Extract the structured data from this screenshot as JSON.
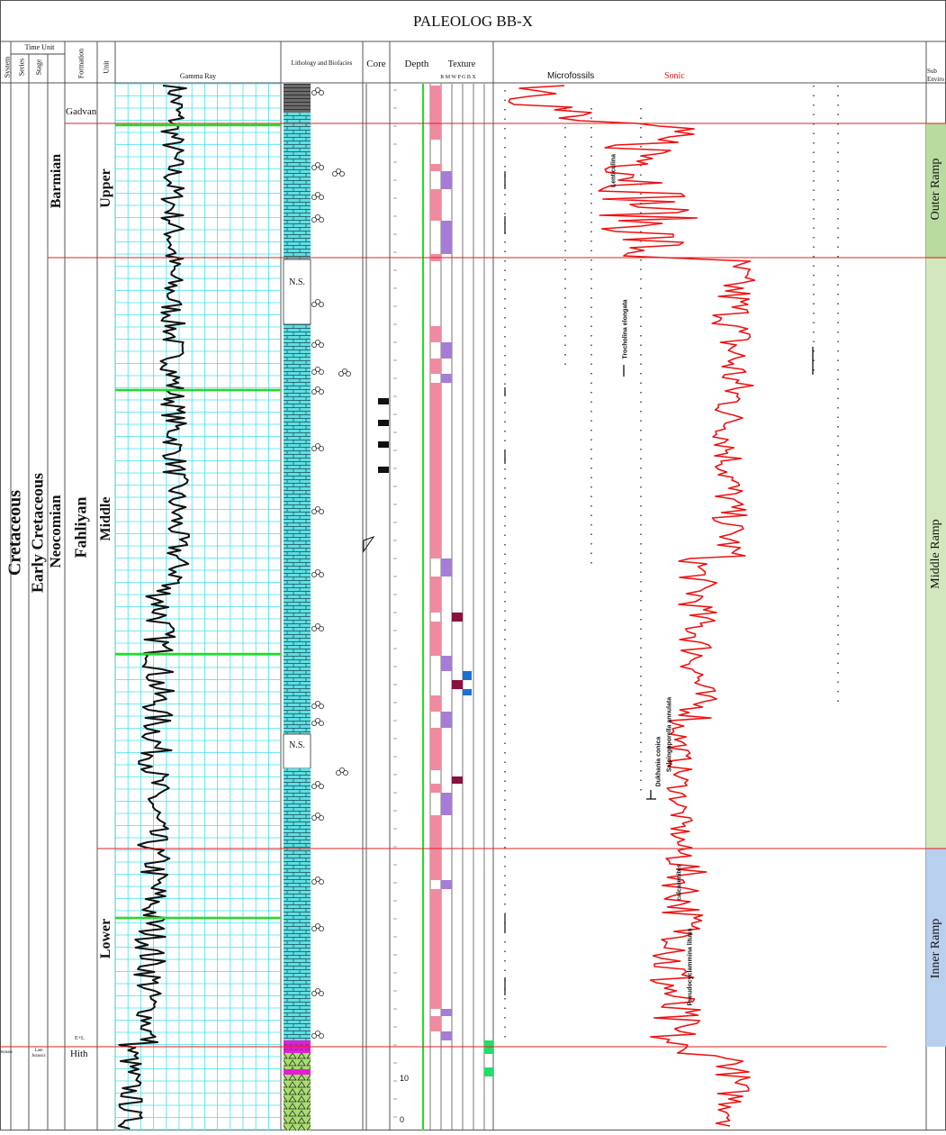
{
  "title": "PALEOLOG BB-X",
  "headers": {
    "system": "System",
    "series": "Series",
    "time_unit": "Time Unit",
    "stage": "Stage",
    "formation": "Formation",
    "unit": "Unit",
    "gamma_ray": "Gamma Ray",
    "lithology": "Lithology and Biofacies",
    "core": "Core",
    "depth": "Depth",
    "texture": "Texture",
    "texture_letters": "R  M  W  P  G  B  X",
    "microfossils": "Microfossils",
    "sonic": "Sonic",
    "sub_env": "Sub Enviro"
  },
  "strat": {
    "system": "Cretaceous",
    "series": "Early Cretaceous",
    "stage": "Neocomian",
    "stage_upper": "Barmian",
    "formation_top": "Gadvan",
    "formation_main": "Fahliyan",
    "unit_upper": "Upper",
    "unit_middle": "Middle",
    "unit_lower": "Lower",
    "unit_el": "E+L",
    "system_base": "Jurassic",
    "series_base": "Late Jurassic",
    "formation_base": "Hith"
  },
  "ns_label": "N.S.",
  "depth_ticks": [
    "10",
    "0"
  ],
  "fossils": [
    "Lenticulina",
    "Trocholina elongata",
    "Dukhania conica",
    "Salpingoporella annulata",
    "calcarenites",
    "Pseudocyclammina lituus"
  ],
  "environments": [
    "Outer Ramp",
    "Middle Ramp",
    "Inner Ramp"
  ],
  "colors": {
    "grid": "#44e0ec",
    "boundary": "#e02020",
    "green_line": "#22dd22",
    "litho": "#5ee0e4",
    "env_outer": "#b9dba0",
    "env_middle": "#d2e8bc",
    "env_inner": "#b8cfee",
    "pink": "#f08aa0",
    "purple": "#a77bd8",
    "maroon": "#8a1040",
    "blue": "#1a6fd6",
    "sonic": "#ee1111"
  }
}
